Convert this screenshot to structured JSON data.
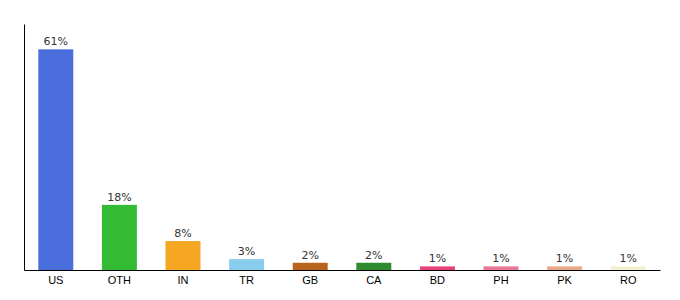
{
  "chart_data": {
    "type": "bar",
    "categories": [
      "US",
      "OTH",
      "IN",
      "TR",
      "GB",
      "CA",
      "BD",
      "PH",
      "PK",
      "RO"
    ],
    "values": [
      61,
      18,
      8,
      3,
      2,
      2,
      1,
      1,
      1,
      1
    ],
    "value_labels": [
      "61%",
      "18%",
      "8%",
      "3%",
      "2%",
      "2%",
      "1%",
      "1%",
      "1%",
      "1%"
    ],
    "colors": [
      "#4a6fdc",
      "#33bb33",
      "#f5a623",
      "#88ccee",
      "#b8641c",
      "#2e8b2e",
      "#e8407a",
      "#e87898",
      "#e8a888",
      "#f0f0d0"
    ],
    "ylim": [
      0,
      68
    ],
    "data_labels": true,
    "tick_labels": "x"
  }
}
